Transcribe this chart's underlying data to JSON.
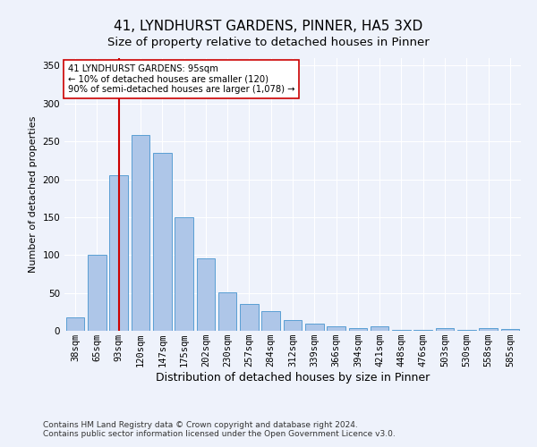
{
  "title1": "41, LYNDHURST GARDENS, PINNER, HA5 3XD",
  "title2": "Size of property relative to detached houses in Pinner",
  "xlabel": "Distribution of detached houses by size in Pinner",
  "ylabel": "Number of detached properties",
  "categories": [
    "38sqm",
    "65sqm",
    "93sqm",
    "120sqm",
    "147sqm",
    "175sqm",
    "202sqm",
    "230sqm",
    "257sqm",
    "284sqm",
    "312sqm",
    "339sqm",
    "366sqm",
    "394sqm",
    "421sqm",
    "448sqm",
    "476sqm",
    "503sqm",
    "530sqm",
    "558sqm",
    "585sqm"
  ],
  "values": [
    18,
    100,
    205,
    258,
    235,
    150,
    96,
    51,
    35,
    26,
    14,
    9,
    6,
    4,
    6,
    1,
    1,
    3,
    1,
    3,
    2
  ],
  "bar_color": "#aec6e8",
  "bar_edge_color": "#5a9fd4",
  "vline_x": 2,
  "vline_color": "#cc0000",
  "annotation_text": "41 LYNDHURST GARDENS: 95sqm\n← 10% of detached houses are smaller (120)\n90% of semi-detached houses are larger (1,078) →",
  "annotation_box_color": "#ffffff",
  "annotation_box_edge": "#cc0000",
  "ylim": [
    0,
    360
  ],
  "yticks": [
    0,
    50,
    100,
    150,
    200,
    250,
    300,
    350
  ],
  "footer1": "Contains HM Land Registry data © Crown copyright and database right 2024.",
  "footer2": "Contains public sector information licensed under the Open Government Licence v3.0.",
  "bg_color": "#eef2fb",
  "plot_bg_color": "#eef2fb",
  "title1_fontsize": 11,
  "title2_fontsize": 9.5,
  "xlabel_fontsize": 9,
  "ylabel_fontsize": 8,
  "tick_fontsize": 7.5,
  "footer_fontsize": 6.5
}
